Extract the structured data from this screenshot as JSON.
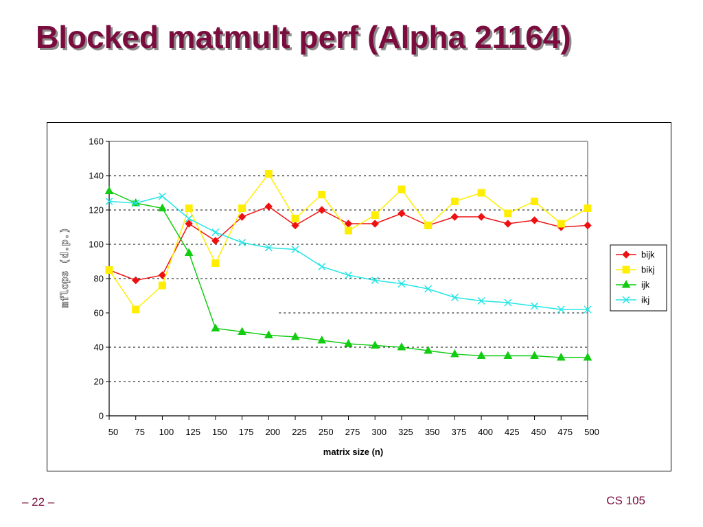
{
  "slide": {
    "title": "Blocked matmult perf (Alpha 21164)",
    "page_number": "– 22 –",
    "course": "CS 105",
    "title_color": "#7a0c3e"
  },
  "chart_data": {
    "type": "line",
    "xlabel": "matrix size (n)",
    "ylabel": "mflops (d.p.)",
    "ylim": [
      0,
      160
    ],
    "yticks": [
      0,
      20,
      40,
      60,
      80,
      100,
      120,
      140,
      160
    ],
    "categories": [
      "50",
      "75",
      "100",
      "125",
      "150",
      "175",
      "200",
      "225",
      "250",
      "275",
      "300",
      "325",
      "350",
      "375",
      "400",
      "425",
      "450",
      "475",
      "500"
    ],
    "grid": "dotted horizontal",
    "legend_position": "right",
    "series": [
      {
        "name": "bijk",
        "color": "#ee1111",
        "marker": "diamond",
        "values": [
          85,
          79,
          82,
          112,
          102,
          116,
          122,
          111,
          120,
          112,
          112,
          118,
          111,
          116,
          116,
          112,
          114,
          110,
          111
        ]
      },
      {
        "name": "bikj",
        "color": "#ffee00",
        "marker": "square",
        "values": [
          85,
          62,
          76,
          121,
          89,
          121,
          141,
          115,
          129,
          108,
          117,
          132,
          111,
          125,
          130,
          118,
          125,
          112,
          121
        ]
      },
      {
        "name": "ijk",
        "color": "#11cc11",
        "marker": "triangle",
        "values": [
          131,
          124,
          121,
          95,
          51,
          49,
          47,
          46,
          44,
          42,
          41,
          40,
          38,
          36,
          35,
          35,
          35,
          34,
          34
        ]
      },
      {
        "name": "ikj",
        "color": "#22e5e5",
        "marker": "x",
        "values": [
          125,
          124,
          128,
          115,
          107,
          101,
          98,
          97,
          87,
          82,
          79,
          77,
          74,
          69,
          67,
          66,
          64,
          62,
          62
        ]
      }
    ]
  }
}
